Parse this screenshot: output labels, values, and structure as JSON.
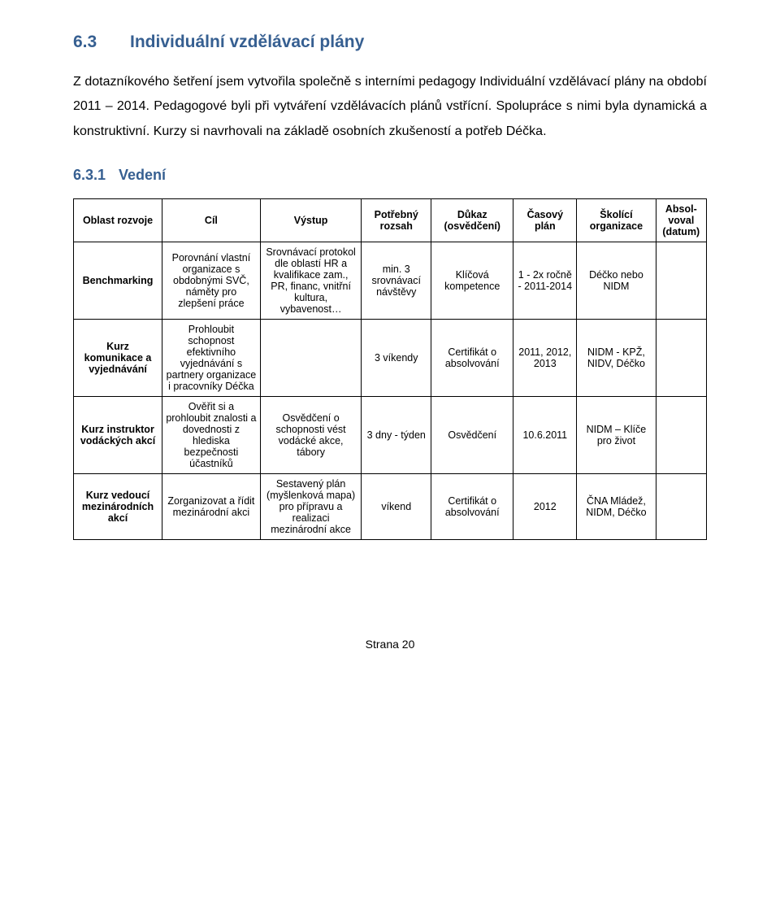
{
  "section": {
    "number": "6.3",
    "title": "Individuální vzdělávací plány"
  },
  "intro": "Z dotazníkového šetření jsem vytvořila společně s interními pedagogy Individuální vzdělávací plány na období 2011 – 2014. Pedagogové byli při vytváření vzdělávacích plánů vstřícní. Spolupráce s nimi byla dynamická a konstruktivní. Kurzy si navrhovali na základě osobních zkušeností a potřeb Déčka.",
  "subsection": {
    "number": "6.3.1",
    "title": "Vedení"
  },
  "colors": {
    "heading": "#365f91",
    "text": "#000000",
    "border": "#000000",
    "background": "#ffffff"
  },
  "table": {
    "headers": {
      "oblast": "Oblast rozvoje",
      "cil": "Cíl",
      "vystup": "Výstup",
      "rozsah": "Potřebný rozsah",
      "dukaz": "Důkaz (osvědčení)",
      "plan": "Časový plán",
      "org": "Školící organizace",
      "abs": "Absol-voval (datum)"
    },
    "rows": [
      {
        "oblast": "Benchmarking",
        "cil": "Porovnání vlastní organizace s obdobnými SVČ, náměty pro zlepšení práce",
        "vystup": "Srovnávací protokol dle oblastí HR a kvalifikace zam., PR, financ, vnitřní kultura, vybavenost…",
        "rozsah": "min. 3 srovnávací návštěvy",
        "dukaz": "Klíčová kompetence",
        "plan": "1 - 2x ročně - 2011-2014",
        "org": "Déčko nebo NIDM",
        "abs": ""
      },
      {
        "oblast": "Kurz komunikace a vyjednávání",
        "cil": "Prohloubit schopnost efektivního vyjednávání s partnery organizace i pracovníky Déčka",
        "vystup": "",
        "rozsah": "3 víkendy",
        "dukaz": "Certifikát o absolvování",
        "plan": "2011, 2012, 2013",
        "org": "NIDM - KPŽ, NIDV, Déčko",
        "abs": ""
      },
      {
        "oblast": "Kurz instruktor vodáckých akcí",
        "cil": "Ověřit si a prohloubit znalosti a dovednosti z hlediska bezpečnosti účastníků",
        "vystup": "Osvědčení o schopnosti vést vodácké akce, tábory",
        "rozsah": "3 dny - týden",
        "dukaz": "Osvědčení",
        "plan": "10.6.2011",
        "org": "NIDM – Klíče pro život",
        "abs": ""
      },
      {
        "oblast": "Kurz vedoucí mezinárodních akcí",
        "cil": "Zorganizovat a řídit mezinárodní akci",
        "vystup": "Sestavený plán (myšlenková mapa) pro přípravu a realizaci mezinárodní akce",
        "rozsah": "víkend",
        "dukaz": "Certifikát o absolvování",
        "plan": "2012",
        "org": "ČNA Mládež, NIDM, Déčko",
        "abs": ""
      }
    ]
  },
  "footer": "Strana 20"
}
